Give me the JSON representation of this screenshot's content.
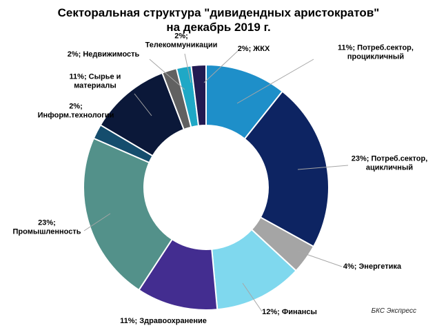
{
  "title": {
    "line1": "Секторальная структура \"дивидендных аристократов\"",
    "line2": "на декабрь 2019 г."
  },
  "source": "БКС Экспресс",
  "chart_data": {
    "type": "pie",
    "variant": "donut",
    "unit": "%",
    "slices": [
      {
        "name": "Потреб.сектор, процикличный",
        "value": 11,
        "label": [
          "11%; Потреб.сектор,",
          "процикличный"
        ],
        "color": "#1e8fc9"
      },
      {
        "name": "Потреб.сектор, ацикличный",
        "value": 23,
        "label": [
          "23%; Потреб.сектор,",
          "ацикличный"
        ],
        "color": "#0d2462"
      },
      {
        "name": "Энергетика",
        "value": 4,
        "label": [
          "4%; Энергетика"
        ],
        "color": "#a5a5a5"
      },
      {
        "name": "Финансы",
        "value": 12,
        "label": [
          "12%; Финансы"
        ],
        "color": "#7fd8ee"
      },
      {
        "name": "Здравоохранение",
        "value": 11,
        "label": [
          "11%; Здравоохранение"
        ],
        "color": "#432d90"
      },
      {
        "name": "Промышленность",
        "value": 23,
        "label": [
          "23%;",
          "Промышленность"
        ],
        "color": "#53918a"
      },
      {
        "name": "Информ.технологии",
        "value": 2,
        "label": [
          "2%;",
          "Информ.технологии"
        ],
        "color": "#154d6d"
      },
      {
        "name": "Сырье и материалы",
        "value": 11,
        "label": [
          "11%; Сырье и",
          "материалы"
        ],
        "color": "#0b1839"
      },
      {
        "name": "Недвижимость",
        "value": 2,
        "label": [
          "2%; Недвижимость"
        ],
        "color": "#616161"
      },
      {
        "name": "Телекоммуникации",
        "value": 2,
        "label": [
          "2%;",
          "Телекоммуникации"
        ],
        "color": "#1fa8c6"
      },
      {
        "name": "ЖКХ",
        "value": 2,
        "label": [
          "2%; ЖКХ"
        ],
        "color": "#221a52"
      }
    ]
  }
}
